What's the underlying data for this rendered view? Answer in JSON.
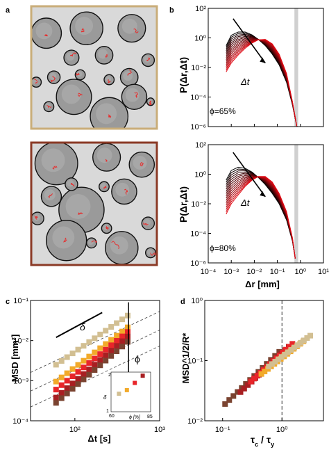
{
  "figure": {
    "panel_labels": [
      "a",
      "b",
      "c",
      "d"
    ],
    "micrograph_frame_colors": [
      "#c9ad79",
      "#8b3a26"
    ],
    "trajectory_color": "#e53030"
  },
  "chart_data": [
    {
      "panel": "b",
      "type": "line",
      "xlabel": "Δr [mm]",
      "ylabel": "P(Δr,Δt)",
      "xscale": "log",
      "yscale": "log",
      "xlim": [
        0.0001,
        10
      ],
      "ylim": [
        1e-06,
        100
      ],
      "xticks": [
        "10⁻⁴",
        "10⁻³",
        "10⁻²",
        "10⁻¹",
        "10⁰",
        "10¹"
      ],
      "yticks": [
        "10²",
        "10⁰",
        "10⁻²",
        "10⁻⁴",
        "10⁻⁶"
      ],
      "shaded_band_x": [
        0.55,
        0.8
      ],
      "arrow_label": "Δt",
      "subplots": [
        {
          "annotation": "ϕ=65%",
          "n_curves": 16,
          "first_curve": {
            "x": [
              0.0006,
              0.001,
              0.002,
              0.004,
              0.008,
              0.015,
              0.03,
              0.06,
              0.12,
              0.25,
              0.45,
              0.7
            ],
            "y": [
              0.3,
              1.5,
              2.5,
              2.5,
              1.6,
              0.8,
              0.3,
              0.08,
              0.015,
              0.001,
              3e-05,
              1e-06
            ]
          },
          "last_curve": {
            "x": [
              0.0006,
              0.001,
              0.002,
              0.004,
              0.008,
              0.015,
              0.03,
              0.06,
              0.12,
              0.25,
              0.45,
              0.7
            ],
            "y": [
              0.005,
              0.02,
              0.07,
              0.2,
              0.45,
              0.75,
              0.8,
              0.4,
              0.08,
              0.004,
              5e-05,
              1e-06
            ]
          }
        },
        {
          "annotation": "ϕ=80%",
          "n_curves": 16,
          "first_curve": {
            "x": [
              0.0006,
              0.001,
              0.002,
              0.004,
              0.008,
              0.015,
              0.03,
              0.06,
              0.12,
              0.25,
              0.45,
              0.6
            ],
            "y": [
              0.4,
              1.8,
              3.0,
              2.5,
              1.4,
              0.6,
              0.2,
              0.05,
              0.01,
              0.0008,
              3e-05,
              2e-06
            ]
          },
          "last_curve": {
            "x": [
              0.0006,
              0.001,
              0.002,
              0.004,
              0.008,
              0.015,
              0.03,
              0.06,
              0.12,
              0.25,
              0.45,
              0.6
            ],
            "y": [
              0.002,
              0.01,
              0.04,
              0.15,
              0.4,
              0.7,
              0.7,
              0.3,
              0.05,
              0.003,
              5e-05,
              2e-06
            ]
          }
        }
      ]
    },
    {
      "panel": "c",
      "type": "scatter",
      "xlabel": "Δt [s]",
      "ylabel": "MSD [mm²]",
      "xscale": "log",
      "yscale": "log",
      "xlim": [
        30,
        1000
      ],
      "ylim": [
        0.0001,
        0.1
      ],
      "xticks": [
        "10²",
        "10³"
      ],
      "yticks": [
        "10⁻¹",
        "10⁻²",
        "10⁻³",
        "10⁻⁴"
      ],
      "slope_label": "δ",
      "phi_arrow_label": "ϕ",
      "inset": {
        "xlabel": "ϕ [%]",
        "ylabel": "δ",
        "xticks": [
          "60",
          "85"
        ],
        "yticks": [
          "1",
          "2"
        ],
        "phi": [
          65,
          70,
          75,
          80
        ],
        "delta": [
          1.5,
          1.6,
          1.8,
          2.0
        ]
      },
      "series": [
        {
          "color": "#d2bf92",
          "x": [
            60,
            420
          ],
          "y_start": 0.0025,
          "slope": 1.45
        },
        {
          "color": "#f2aa2a",
          "x": [
            60,
            420
          ],
          "y_start": 0.00095,
          "slope": 1.6
        },
        {
          "color": "#e8252a",
          "x": [
            60,
            420
          ],
          "y_start": 0.0006,
          "slope": 1.7
        },
        {
          "color": "#a81f22",
          "x": [
            60,
            420
          ],
          "y_start": 0.00038,
          "slope": 1.8
        },
        {
          "color": "#7a4330",
          "x": [
            60,
            420
          ],
          "y_start": 0.00028,
          "slope": 1.8
        }
      ]
    },
    {
      "panel": "d",
      "type": "scatter",
      "xlabel": "τ_c / τ_y",
      "ylabel": "MSD^1/2/R*",
      "xscale": "log",
      "yscale": "log",
      "xlim": [
        0.05,
        5
      ],
      "ylim": [
        0.01,
        1
      ],
      "xticks": [
        "10⁻¹",
        "10⁰"
      ],
      "yticks": [
        "10⁰",
        "10⁻¹",
        "10⁻²"
      ],
      "vline_x": 1,
      "series": [
        {
          "color": "#7a4330",
          "x": [
            0.11,
            0.9
          ],
          "y": [
            0.019,
            0.14
          ]
        },
        {
          "color": "#a81f22",
          "x": [
            0.2,
            1.3
          ],
          "y": [
            0.03,
            0.17
          ]
        },
        {
          "color": "#e8252a",
          "x": [
            0.3,
            1.5
          ],
          "y": [
            0.045,
            0.19
          ]
        },
        {
          "color": "#f2aa2a",
          "x": [
            0.45,
            2.3
          ],
          "y": [
            0.06,
            0.21
          ]
        },
        {
          "color": "#d2bf92",
          "x": [
            0.6,
            3.0
          ],
          "y": [
            0.08,
            0.26
          ]
        }
      ]
    }
  ]
}
